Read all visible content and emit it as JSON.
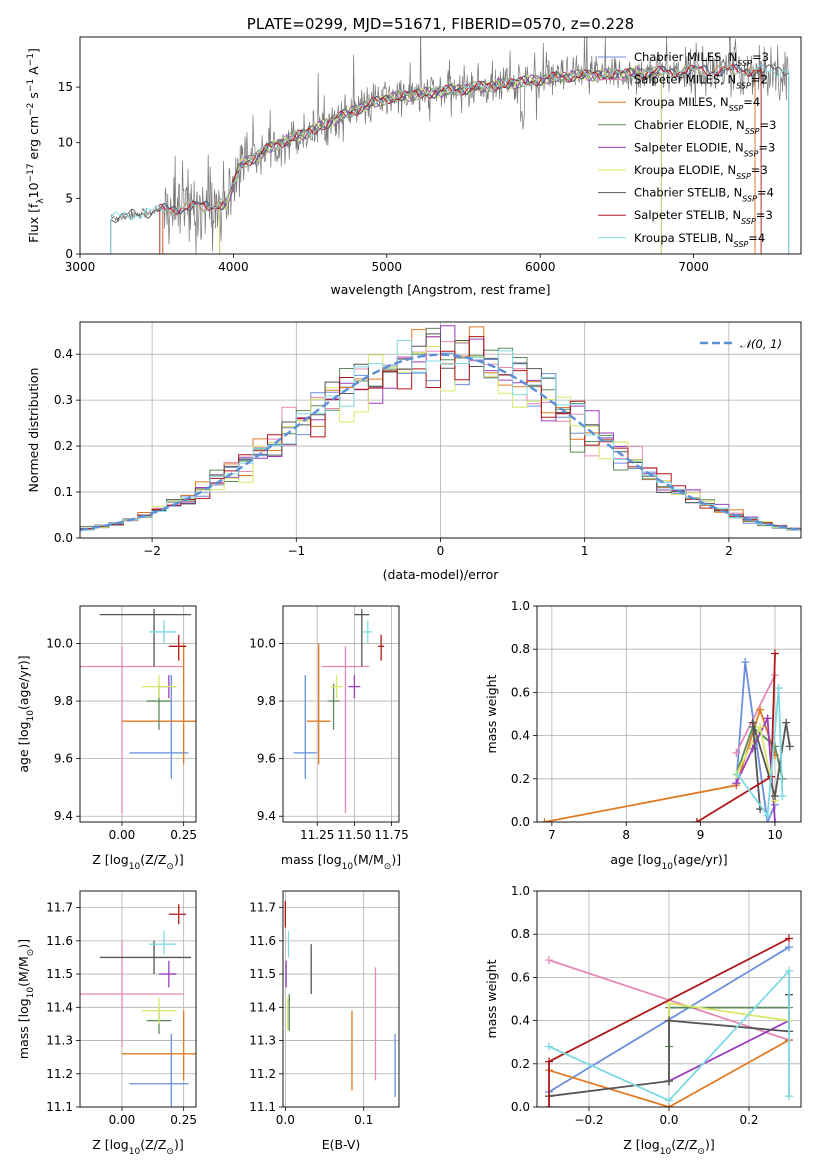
{
  "colors": {
    "Chabrier MILES": "#6a8fdc",
    "Salpeter MILES": "#e688b8",
    "Kroupa MILES": "#e07b24",
    "Chabrier ELODIE": "#5b8a5b",
    "Salpeter ELODIE": "#9b3fbf",
    "Kroupa ELODIE": "#d8e86a",
    "Chabrier STELIB": "#555555",
    "Salpeter STELIB": "#b01818",
    "Kroupa STELIB": "#7fd9e2",
    "gauss": "#5b8fd6",
    "grid": "#b0b0b0"
  },
  "chart_data": [
    {
      "type": "line",
      "title": "PLATE=0299, MJD=51671, FIBERID=0570, z=0.228",
      "xlabel": "wavelength [Angstrom, rest frame]",
      "ylabel": "Flux [f",
      "ylabel_sub": "λ",
      "ylabel_rest": "10",
      "ylabel_sup": "−17",
      "ylabel_unit": " erg cm",
      "ylabel_sup2": "−2",
      "ylabel_s": " s",
      "ylabel_sup3": "−1",
      "ylabel_end": " A",
      "ylabel_sup4": "−1",
      "ylabel_close": "]",
      "xlim": [
        3000,
        7700
      ],
      "ylim": [
        0,
        19.5
      ],
      "xticks": [
        "3000",
        "4000",
        "5000",
        "6000",
        "7000"
      ],
      "yticks": [
        "0",
        "5",
        "10",
        "15"
      ],
      "legend": [
        {
          "name": "Chabrier MILES",
          "nssp": "3"
        },
        {
          "name": "Salpeter MILES",
          "nssp": "2"
        },
        {
          "name": "Kroupa MILES",
          "nssp": "4"
        },
        {
          "name": "Chabrier ELODIE",
          "nssp": "3"
        },
        {
          "name": "Salpeter ELODIE",
          "nssp": "3"
        },
        {
          "name": "Kroupa ELODIE",
          "nssp": "3"
        },
        {
          "name": "Chabrier STELIB",
          "nssp": "4"
        },
        {
          "name": "Salpeter STELIB",
          "nssp": "3"
        },
        {
          "name": "Kroupa STELIB",
          "nssp": "4"
        }
      ],
      "legend_placement": "upper right",
      "data_start": 3200,
      "data_end": 7620,
      "continuum": [
        [
          3200,
          3.2
        ],
        [
          3550,
          4.0
        ],
        [
          3950,
          4.5
        ],
        [
          4050,
          8.0
        ],
        [
          4300,
          10.0
        ],
        [
          4500,
          11.0
        ],
        [
          4800,
          13.0
        ],
        [
          5000,
          14.0
        ],
        [
          5300,
          14.5
        ],
        [
          5600,
          15.0
        ],
        [
          5900,
          15.5
        ],
        [
          6200,
          16.0
        ],
        [
          6600,
          16.2
        ],
        [
          7000,
          16.5
        ],
        [
          7400,
          16.5
        ],
        [
          7620,
          16.5
        ]
      ]
    },
    {
      "type": "histogram",
      "xlabel": "(data-model)/error",
      "ylabel": "Normed distribution",
      "xlim": [
        -2.5,
        2.5
      ],
      "ylim": [
        0,
        0.47
      ],
      "xticks": [
        "−2",
        "−1",
        "0",
        "1",
        "2"
      ],
      "yticks": [
        "0.0",
        "0.1",
        "0.2",
        "0.3",
        "0.4"
      ],
      "legend": "𝒩(0, 1)",
      "legend_placement": "upper right",
      "bin_width": 0.1
    },
    {
      "type": "scatter",
      "xlabel": "Z [log",
      "xlabel_sub": "10",
      "xlabel_end": "(Z/Z",
      "xlabel_sub2": "⊙",
      "xlabel_close": ")]",
      "ylabel": "age  [log",
      "ylabel_sub": "10",
      "ylabel_end": "(age/yr)]",
      "xlim": [
        -0.17,
        0.3
      ],
      "ylim": [
        9.38,
        10.13
      ],
      "xticks": [
        "0.00",
        "0.25"
      ],
      "yticks": [
        "9.4",
        "9.6",
        "9.8",
        "10.0"
      ],
      "points": [
        {
          "series": "Chabrier MILES",
          "x": 0.2,
          "xerr": [
            0.17,
            0.07
          ],
          "y": 9.62,
          "yerr": [
            0.09,
            0.27
          ]
        },
        {
          "series": "Salpeter MILES",
          "x": 0.0,
          "xerr": [
            0.25,
            0.25
          ],
          "y": 9.92,
          "yerr": [
            0.51,
            0.07
          ]
        },
        {
          "series": "Kroupa MILES",
          "x": 0.25,
          "xerr": [
            0.25,
            0.05
          ],
          "y": 9.73,
          "yerr": [
            0.15,
            0.27
          ]
        },
        {
          "series": "Chabrier ELODIE",
          "x": 0.15,
          "xerr": [
            0.05,
            0.05
          ],
          "y": 9.8,
          "yerr": [
            0.1,
            0.06
          ]
        },
        {
          "series": "Salpeter ELODIE",
          "x": 0.19,
          "xerr": [
            0.04,
            0.03
          ],
          "y": 9.85,
          "yerr": [
            0.04,
            0.04
          ]
        },
        {
          "series": "Kroupa ELODIE",
          "x": 0.15,
          "xerr": [
            0.07,
            0.07
          ],
          "y": 9.85,
          "yerr": [
            0.04,
            0.04
          ]
        },
        {
          "series": "Chabrier STELIB",
          "x": 0.13,
          "xerr": [
            0.22,
            0.15
          ],
          "y": 10.1,
          "yerr": [
            0.18,
            0.02
          ]
        },
        {
          "series": "Salpeter STELIB",
          "x": 0.23,
          "xerr": [
            0.04,
            0.03
          ],
          "y": 9.99,
          "yerr": [
            0.05,
            0.04
          ]
        },
        {
          "series": "Kroupa STELIB",
          "x": 0.17,
          "xerr": [
            0.06,
            0.05
          ],
          "y": 10.04,
          "yerr": [
            0.04,
            0.04
          ]
        }
      ]
    },
    {
      "type": "scatter",
      "xlabel": "mass [log",
      "xlabel_sub": "10",
      "xlabel_end": "(M/M",
      "xlabel_sub2": "⊙",
      "xlabel_close": ")]",
      "xlim": [
        11.02,
        11.8
      ],
      "ylim": [
        9.38,
        10.13
      ],
      "xticks": [
        "11.25",
        "11.50",
        "11.75"
      ],
      "yticks": [
        "9.4",
        "9.6",
        "9.8",
        "10.0"
      ],
      "points": [
        {
          "series": "Chabrier MILES",
          "x": 11.17,
          "xerr": [
            0.08,
            0.08
          ],
          "y": 9.62,
          "yerr": [
            0.09,
            0.27
          ]
        },
        {
          "series": "Salpeter MILES",
          "x": 11.44,
          "xerr": [
            0.16,
            0.16
          ],
          "y": 9.92,
          "yerr": [
            0.51,
            0.07
          ]
        },
        {
          "series": "Kroupa MILES",
          "x": 11.26,
          "xerr": [
            0.08,
            0.08
          ],
          "y": 9.73,
          "yerr": [
            0.15,
            0.27
          ]
        },
        {
          "series": "Chabrier ELODIE",
          "x": 11.36,
          "xerr": [
            0.04,
            0.04
          ],
          "y": 9.8,
          "yerr": [
            0.1,
            0.06
          ]
        },
        {
          "series": "Salpeter ELODIE",
          "x": 11.5,
          "xerr": [
            0.04,
            0.04
          ],
          "y": 9.85,
          "yerr": [
            0.04,
            0.04
          ]
        },
        {
          "series": "Kroupa ELODIE",
          "x": 11.38,
          "xerr": [
            0.04,
            0.04
          ],
          "y": 9.85,
          "yerr": [
            0.04,
            0.04
          ]
        },
        {
          "series": "Chabrier STELIB",
          "x": 11.55,
          "xerr": [
            0.05,
            0.05
          ],
          "y": 10.1,
          "yerr": [
            0.18,
            0.02
          ]
        },
        {
          "series": "Salpeter STELIB",
          "x": 11.68,
          "xerr": [
            0.02,
            0.02
          ],
          "y": 9.99,
          "yerr": [
            0.05,
            0.04
          ]
        },
        {
          "series": "Kroupa STELIB",
          "x": 11.59,
          "xerr": [
            0.03,
            0.03
          ],
          "y": 10.04,
          "yerr": [
            0.04,
            0.04
          ]
        }
      ]
    },
    {
      "type": "line",
      "xlabel": "age  [log",
      "xlabel_sub": "10",
      "xlabel_end": "(age/yr)]",
      "ylabel": "mass weight",
      "xlim": [
        6.8,
        10.35
      ],
      "ylim": [
        0,
        1
      ],
      "xticks": [
        "7",
        "8",
        "9",
        "10"
      ],
      "yticks": [
        "0.0",
        "0.2",
        "0.4",
        "0.6",
        "0.8",
        "1.0"
      ],
      "series": [
        {
          "name": "Chabrier MILES",
          "x": [
            9.48,
            9.6,
            9.9,
            10.0
          ],
          "y": [
            0.18,
            0.74,
            0.0,
            0.08
          ]
        },
        {
          "name": "Salpeter MILES",
          "x": [
            9.48,
            10.0
          ],
          "y": [
            0.32,
            0.68
          ]
        },
        {
          "name": "Kroupa MILES",
          "x": [
            6.9,
            9.48,
            9.8,
            10.0
          ],
          "y": [
            0.0,
            0.17,
            0.52,
            0.31
          ]
        },
        {
          "name": "Chabrier ELODIE",
          "x": [
            9.48,
            9.7,
            10.0,
            10.1
          ],
          "y": [
            0.22,
            0.44,
            0.35,
            0.2
          ]
        },
        {
          "name": "Salpeter ELODIE",
          "x": [
            9.48,
            9.7,
            9.9,
            10.0
          ],
          "y": [
            0.18,
            0.34,
            0.48,
            0.0
          ]
        },
        {
          "name": "Kroupa ELODIE",
          "x": [
            9.48,
            9.8,
            10.0
          ],
          "y": [
            0.22,
            0.44,
            0.1
          ]
        },
        {
          "name": "Chabrier STELIB",
          "x": [
            9.8,
            9.7,
            10.0,
            10.15,
            10.2
          ],
          "y": [
            0.06,
            0.46,
            0.12,
            0.46,
            0.35
          ]
        },
        {
          "name": "Salpeter STELIB",
          "x": [
            8.95,
            9.95,
            10.0
          ],
          "y": [
            0.0,
            0.21,
            0.78
          ]
        },
        {
          "name": "Kroupa STELIB",
          "x": [
            9.5,
            9.9,
            10.05,
            10.1
          ],
          "y": [
            0.22,
            0.03,
            0.62,
            0.12
          ]
        }
      ]
    },
    {
      "type": "scatter",
      "xlabel": "Z [log",
      "xlabel_sub": "10",
      "xlabel_end": "(Z/Z",
      "xlabel_sub2": "⊙",
      "xlabel_close": ")]",
      "ylabel": "mass [log",
      "ylabel_sub": "10",
      "ylabel_end": "(M/M",
      "ylabel_sub2": "⊙",
      "ylabel_close": ")]",
      "xlim": [
        -0.17,
        0.3
      ],
      "ylim": [
        11.1,
        11.75
      ],
      "xticks": [
        "0.00",
        "0.25"
      ],
      "yticks": [
        "11.1",
        "11.2",
        "11.3",
        "11.4",
        "11.5",
        "11.6",
        "11.7"
      ],
      "points": [
        {
          "series": "Chabrier MILES",
          "x": 0.2,
          "xerr": [
            0.17,
            0.07
          ],
          "y": 11.17,
          "yerr": [
            0.08,
            0.15
          ]
        },
        {
          "series": "Salpeter MILES",
          "x": 0.0,
          "xerr": [
            0.25,
            0.25
          ],
          "y": 11.44,
          "yerr": [
            0.16,
            0.16
          ]
        },
        {
          "series": "Kroupa MILES",
          "x": 0.25,
          "xerr": [
            0.25,
            0.05
          ],
          "y": 11.26,
          "yerr": [
            0.08,
            0.13
          ]
        },
        {
          "series": "Chabrier ELODIE",
          "x": 0.15,
          "xerr": [
            0.05,
            0.05
          ],
          "y": 11.36,
          "yerr": [
            0.04,
            0.04
          ]
        },
        {
          "series": "Salpeter ELODIE",
          "x": 0.19,
          "xerr": [
            0.04,
            0.03
          ],
          "y": 11.5,
          "yerr": [
            0.04,
            0.04
          ]
        },
        {
          "series": "Kroupa ELODIE",
          "x": 0.15,
          "xerr": [
            0.07,
            0.07
          ],
          "y": 11.39,
          "yerr": [
            0.04,
            0.04
          ]
        },
        {
          "series": "Chabrier STELIB",
          "x": 0.13,
          "xerr": [
            0.22,
            0.15
          ],
          "y": 11.55,
          "yerr": [
            0.05,
            0.05
          ]
        },
        {
          "series": "Salpeter STELIB",
          "x": 0.23,
          "xerr": [
            0.04,
            0.03
          ],
          "y": 11.68,
          "yerr": [
            0.03,
            0.03
          ]
        },
        {
          "series": "Kroupa STELIB",
          "x": 0.17,
          "xerr": [
            0.06,
            0.05
          ],
          "y": 11.59,
          "yerr": [
            0.03,
            0.04
          ]
        }
      ]
    },
    {
      "type": "scatter",
      "xlabel": "E(B-V)",
      "xlim": [
        -0.003,
        0.145
      ],
      "ylim": [
        11.1,
        11.75
      ],
      "xticks": [
        "0.0",
        "0.1"
      ],
      "yticks": [
        "11.1",
        "11.2",
        "11.3",
        "11.4",
        "11.5",
        "11.6",
        "11.7"
      ],
      "points": [
        {
          "series": "Chabrier MILES",
          "x": 0.14,
          "y": 11.2,
          "yerr": [
            0.07,
            0.12
          ]
        },
        {
          "series": "Salpeter MILES",
          "x": 0.115,
          "y": 11.35,
          "yerr": [
            0.17,
            0.17
          ]
        },
        {
          "series": "Kroupa MILES",
          "x": 0.085,
          "y": 11.27,
          "yerr": [
            0.12,
            0.12
          ]
        },
        {
          "series": "Chabrier ELODIE",
          "x": 0.005,
          "y": 11.38,
          "yerr": [
            0.05,
            0.06
          ]
        },
        {
          "series": "Salpeter ELODIE",
          "x": 0.001,
          "y": 11.5,
          "yerr": [
            0.04,
            0.04
          ]
        },
        {
          "series": "Kroupa ELODIE",
          "x": 0.003,
          "y": 11.38,
          "yerr": [
            0.05,
            0.05
          ]
        },
        {
          "series": "Chabrier STELIB",
          "x": 0.033,
          "y": 11.52,
          "yerr": [
            0.08,
            0.07
          ]
        },
        {
          "series": "Salpeter STELIB",
          "x": 0.0,
          "y": 11.68,
          "yerr": [
            0.04,
            0.04
          ]
        },
        {
          "series": "Kroupa STELIB",
          "x": 0.004,
          "y": 11.59,
          "yerr": [
            0.04,
            0.04
          ]
        }
      ]
    },
    {
      "type": "line",
      "xlabel": "Z [log",
      "xlabel_sub": "10",
      "xlabel_end": "(Z/Z",
      "xlabel_sub2": "⊙",
      "xlabel_close": ")]",
      "ylabel": "mass weight",
      "xlim": [
        -0.33,
        0.33
      ],
      "ylim": [
        0,
        1
      ],
      "xticks": [
        "−0.2",
        "0.0",
        "0.2"
      ],
      "yticks": [
        "0.0",
        "0.2",
        "0.4",
        "0.6",
        "0.8",
        "1.0"
      ],
      "series": [
        {
          "name": "Chabrier MILES",
          "x": [
            -0.3,
            0.3
          ],
          "y": [
            0.07,
            0.74
          ]
        },
        {
          "name": "Salpeter MILES",
          "x": [
            -0.3,
            0.3
          ],
          "y": [
            0.68,
            0.31
          ]
        },
        {
          "name": "Kroupa MILES",
          "x": [
            -0.3,
            0.0,
            0.3
          ],
          "y": [
            0.17,
            0.0,
            0.31
          ]
        },
        {
          "name": "Chabrier ELODIE",
          "x": [
            0.0,
            0.0,
            0.3
          ],
          "y": [
            0.28,
            0.46,
            0.46
          ]
        },
        {
          "name": "Salpeter ELODIE",
          "x": [
            0.0,
            0.3
          ],
          "y": [
            0.12,
            0.4
          ]
        },
        {
          "name": "Kroupa ELODIE",
          "x": [
            0.0,
            0.0,
            0.3
          ],
          "y": [
            0.12,
            0.48,
            0.4
          ]
        },
        {
          "name": "Chabrier STELIB",
          "x": [
            -0.3,
            0.0,
            0.0,
            0.3,
            0.3
          ],
          "y": [
            0.05,
            0.12,
            0.4,
            0.35,
            0.52
          ]
        },
        {
          "name": "Salpeter STELIB",
          "x": [
            -0.3,
            -0.3,
            0.3
          ],
          "y": [
            0.0,
            0.21,
            0.78
          ]
        },
        {
          "name": "Kroupa STELIB",
          "x": [
            -0.3,
            0.0,
            0.3,
            0.3
          ],
          "y": [
            0.28,
            0.03,
            0.63,
            0.05
          ]
        }
      ]
    }
  ]
}
